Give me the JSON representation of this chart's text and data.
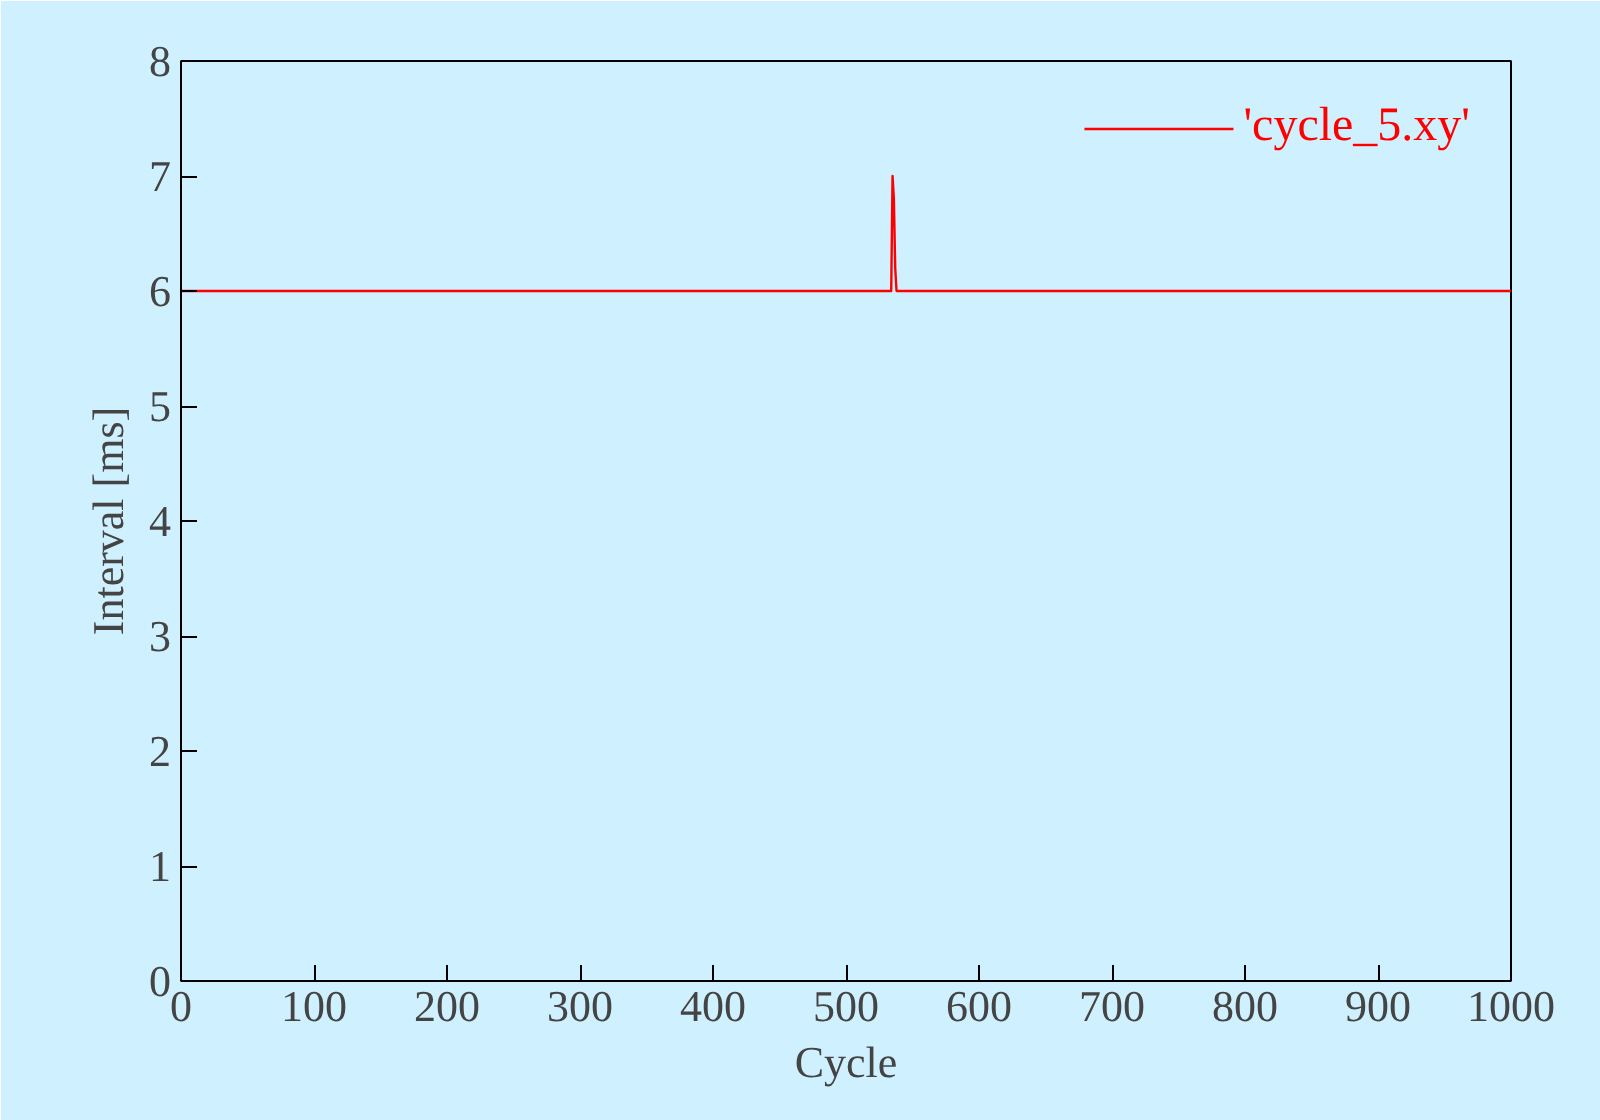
{
  "chart_data": {
    "type": "line",
    "xlabel": "Cycle",
    "ylabel": "Interval [ms]",
    "xlim": [
      0,
      1000
    ],
    "ylim": [
      0,
      8
    ],
    "xticks": [
      0,
      100,
      200,
      300,
      400,
      500,
      600,
      700,
      800,
      900,
      1000
    ],
    "yticks": [
      0,
      1,
      2,
      3,
      4,
      5,
      6,
      7,
      8
    ],
    "grid": false,
    "legend": "top right",
    "marker": "none",
    "line_style": "solid",
    "series": [
      {
        "name": "'cycle_5.xy'",
        "color": "#ff0000",
        "x": [
          0,
          50,
          100,
          150,
          200,
          250,
          300,
          350,
          400,
          450,
          500,
          530,
          533,
          534,
          535,
          536,
          537,
          538,
          550,
          600,
          650,
          700,
          750,
          800,
          850,
          900,
          950,
          1000
        ],
        "values": [
          6.0,
          6.0,
          6.0,
          6.0,
          6.0,
          6.0,
          6.0,
          6.0,
          6.0,
          6.0,
          6.0,
          6.0,
          6.0,
          6.0,
          7.0,
          6.8,
          6.2,
          6.0,
          6.0,
          6.0,
          6.0,
          6.0,
          6.0,
          6.0,
          6.0,
          6.0,
          6.0,
          6.0
        ]
      }
    ]
  }
}
